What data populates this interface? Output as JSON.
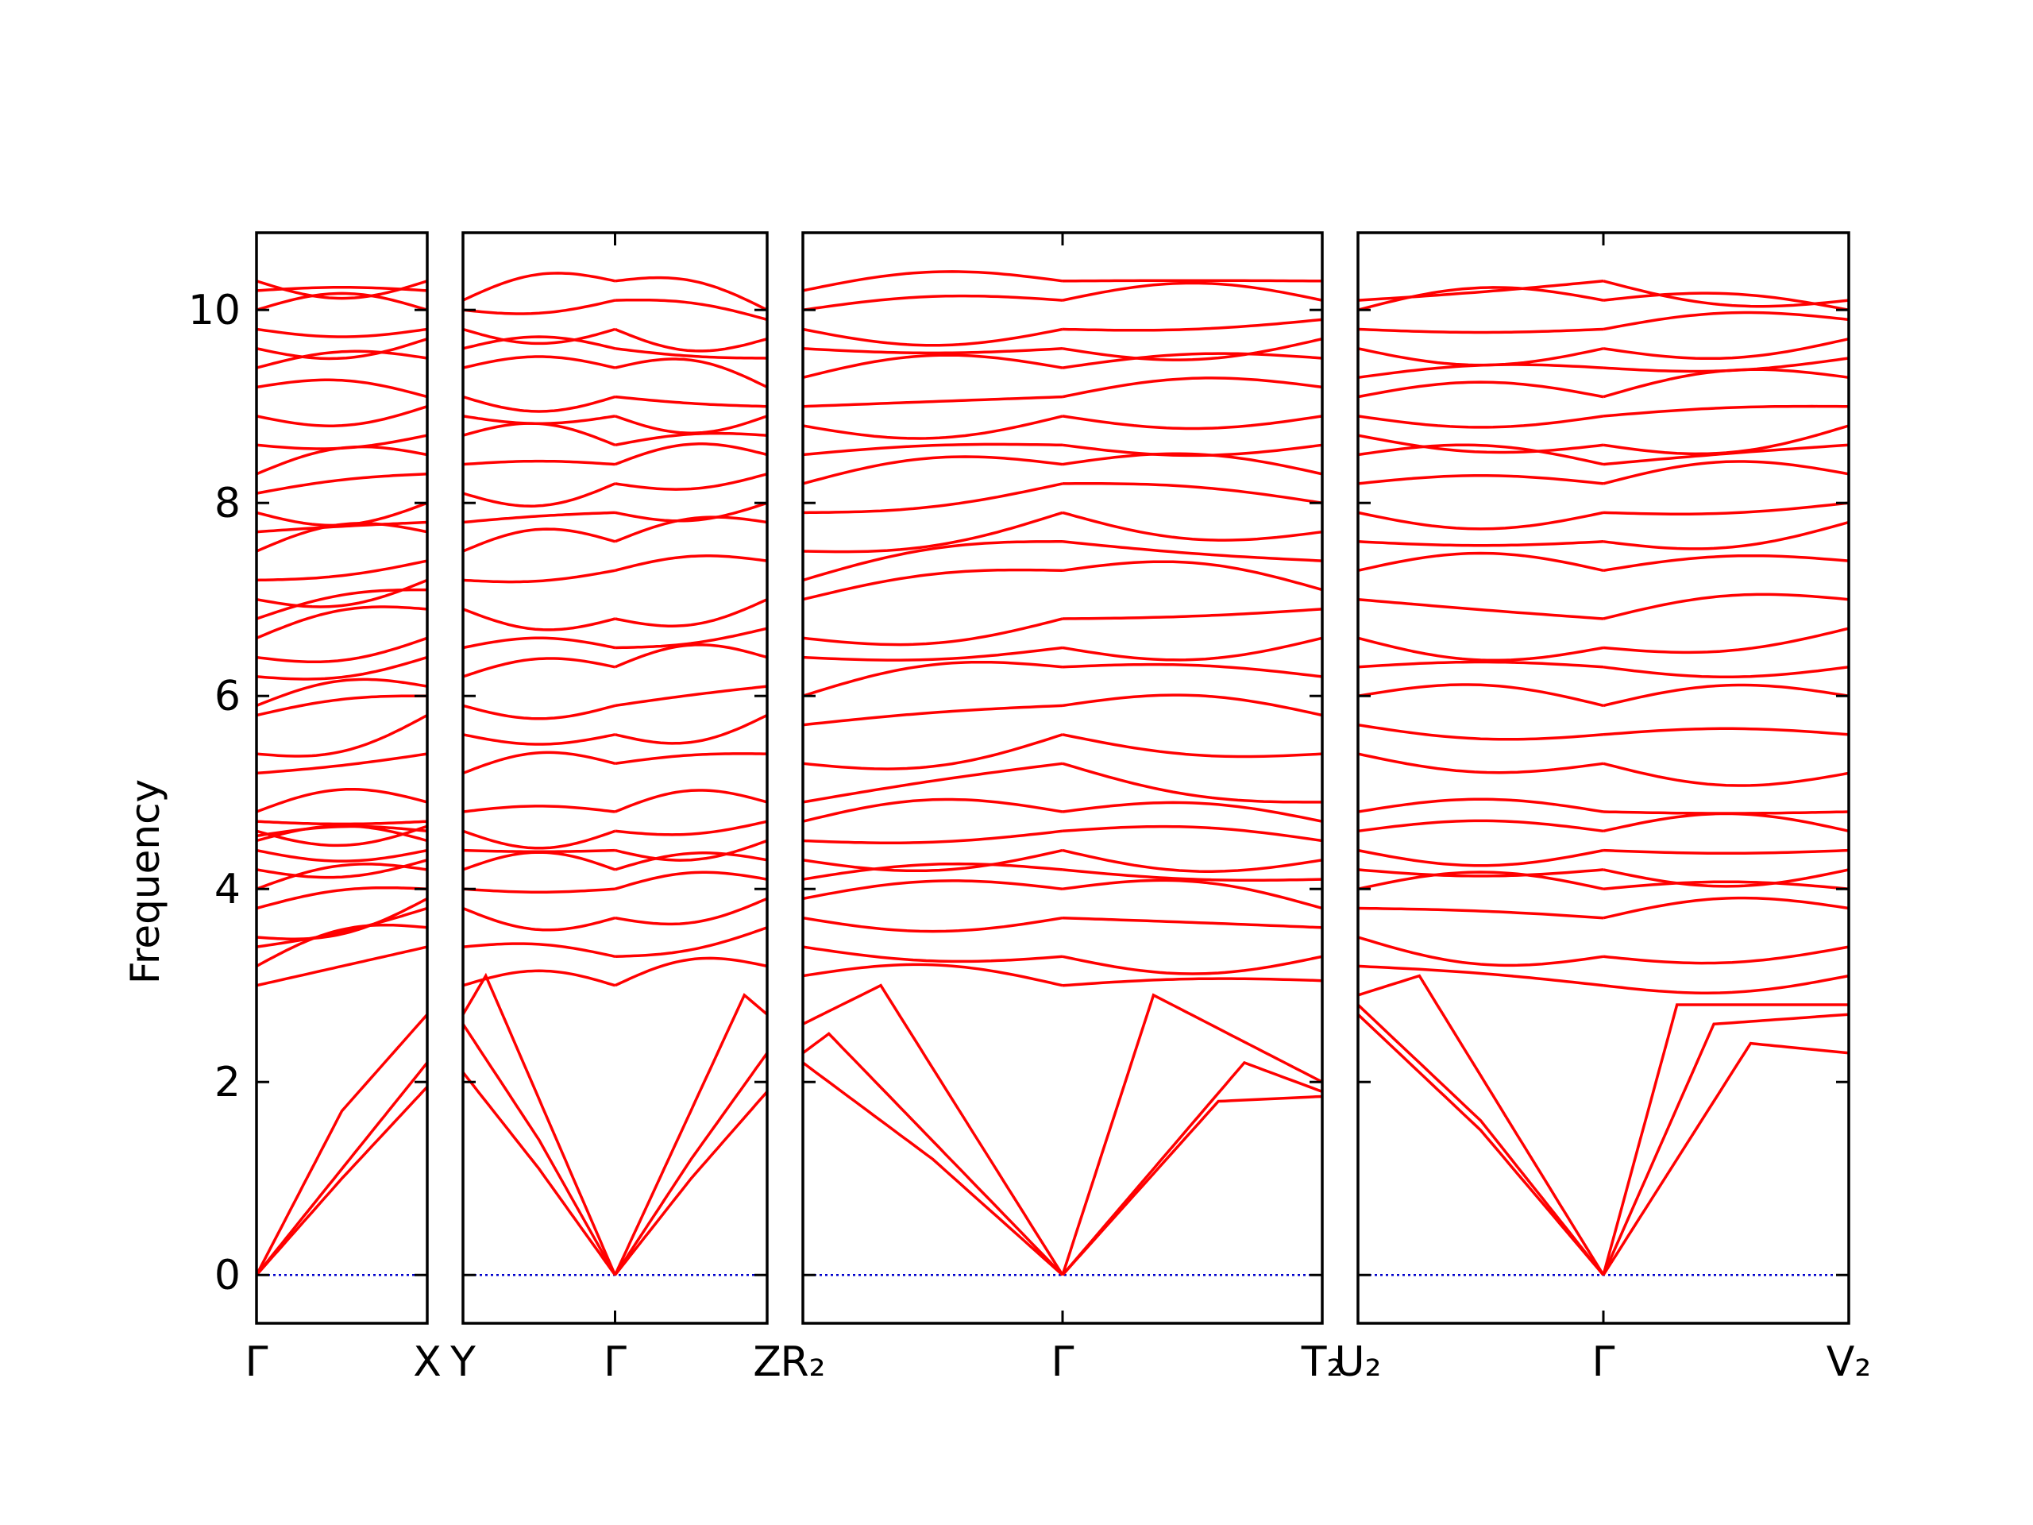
{
  "chart_data": {
    "type": "line",
    "ylabel": "Frequency",
    "xlabel": "",
    "title": "",
    "ylim": [
      -0.5,
      10.8
    ],
    "yticks": [
      0,
      2,
      4,
      6,
      8,
      10
    ],
    "grid": false,
    "legend": "none",
    "line_color": "#ff0000",
    "zero_line_color": "#0000cc",
    "panels": [
      {
        "path": [
          "Γ",
          "X"
        ],
        "segments": [
          {
            "acoustic": [
              {
                "k": [
                  0,
                  0.5,
                  1
                ],
                "f": [
                  0,
                  1.7,
                  2.7
                ]
              },
              {
                "k": [
                  0,
                  0.5,
                  1
                ],
                "f": [
                  0,
                  1.1,
                  2.2
                ]
              },
              {
                "k": [
                  0,
                  0.5,
                  1
                ],
                "f": [
                  0,
                  1.0,
                  1.95
                ]
              }
            ],
            "optical_start": [
              3.0,
              3.2,
              3.4,
              3.5,
              3.8,
              4.0,
              4.2,
              4.4,
              4.5,
              4.55,
              4.6,
              4.7,
              4.8,
              5.2,
              5.4,
              5.8,
              5.9,
              6.2,
              6.4,
              6.6,
              6.8,
              7.0,
              7.2,
              7.5,
              7.7,
              7.9,
              8.1,
              8.3,
              8.6,
              8.9,
              9.2,
              9.4,
              9.6,
              9.8,
              10.0,
              10.2,
              10.3
            ],
            "optical_end": [
              3.4,
              3.6,
              3.8,
              3.9,
              4.0,
              4.2,
              4.3,
              4.4,
              4.5,
              4.6,
              4.65,
              4.7,
              4.9,
              5.4,
              5.8,
              6.0,
              6.1,
              6.4,
              6.6,
              6.9,
              7.1,
              7.2,
              7.4,
              7.7,
              7.8,
              8.0,
              8.3,
              8.5,
              8.7,
              9.0,
              9.1,
              9.5,
              9.7,
              9.8,
              10.0,
              10.2,
              10.3
            ]
          }
        ]
      },
      {
        "path": [
          "Y",
          "Γ",
          "Z"
        ],
        "segments": [
          {
            "acoustic": [
              {
                "k": [
                  0,
                  0.15,
                  1
                ],
                "f": [
                  2.7,
                  3.1,
                  0
                ]
              },
              {
                "k": [
                  0,
                  0.5,
                  1
                ],
                "f": [
                  2.6,
                  1.4,
                  0
                ]
              },
              {
                "k": [
                  0,
                  0.5,
                  1
                ],
                "f": [
                  2.1,
                  1.1,
                  0
                ]
              }
            ],
            "optical_start": [
              3.0,
              3.4,
              3.8,
              4.0,
              4.2,
              4.4,
              4.6,
              4.8,
              5.2,
              5.6,
              5.9,
              6.2,
              6.5,
              6.9,
              7.2,
              7.5,
              7.8,
              8.1,
              8.4,
              8.7,
              8.9,
              9.1,
              9.4,
              9.6,
              9.8,
              10.0,
              10.1
            ],
            "optical_end": [
              3.0,
              3.3,
              3.7,
              4.0,
              4.2,
              4.4,
              4.6,
              4.8,
              5.3,
              5.6,
              5.9,
              6.3,
              6.5,
              6.8,
              7.3,
              7.6,
              7.9,
              8.2,
              8.4,
              8.6,
              8.9,
              9.1,
              9.4,
              9.6,
              9.8,
              10.1,
              10.3
            ]
          },
          {
            "acoustic": [
              {
                "k": [
                  0,
                  0.85,
                  1
                ],
                "f": [
                  0,
                  2.9,
                  2.7
                ]
              },
              {
                "k": [
                  0,
                  0.5,
                  1
                ],
                "f": [
                  0,
                  1.2,
                  2.3
                ]
              },
              {
                "k": [
                  0,
                  0.5,
                  1
                ],
                "f": [
                  0,
                  1.0,
                  1.9
                ]
              }
            ],
            "optical_start": [
              3.0,
              3.3,
              3.7,
              4.0,
              4.2,
              4.4,
              4.6,
              4.8,
              5.3,
              5.6,
              5.9,
              6.3,
              6.5,
              6.8,
              7.3,
              7.6,
              7.9,
              8.2,
              8.4,
              8.6,
              8.9,
              9.1,
              9.4,
              9.6,
              9.8,
              10.1,
              10.3
            ],
            "optical_end": [
              3.2,
              3.6,
              3.9,
              4.1,
              4.3,
              4.5,
              4.7,
              4.9,
              5.4,
              5.8,
              6.1,
              6.4,
              6.7,
              7.0,
              7.4,
              7.8,
              8.0,
              8.3,
              8.5,
              8.7,
              8.9,
              9.0,
              9.2,
              9.5,
              9.7,
              9.9,
              10.0
            ]
          }
        ]
      },
      {
        "path": [
          "R₂",
          "Γ",
          "T₂"
        ],
        "segments": [
          {
            "acoustic": [
              {
                "k": [
                  0,
                  0.3,
                  1
                ],
                "f": [
                  2.6,
                  3.0,
                  0
                ]
              },
              {
                "k": [
                  0,
                  0.1,
                  1
                ],
                "f": [
                  2.3,
                  2.5,
                  0
                ]
              },
              {
                "k": [
                  0,
                  0.5,
                  1
                ],
                "f": [
                  2.2,
                  1.2,
                  0
                ]
              }
            ],
            "optical_start": [
              3.1,
              3.4,
              3.7,
              3.9,
              4.1,
              4.3,
              4.5,
              4.7,
              4.9,
              5.3,
              5.7,
              6.0,
              6.4,
              6.6,
              7.0,
              7.2,
              7.5,
              7.9,
              8.2,
              8.5,
              8.8,
              9.0,
              9.3,
              9.6,
              9.8,
              10.0,
              10.2
            ],
            "optical_end": [
              3.0,
              3.3,
              3.7,
              4.0,
              4.2,
              4.4,
              4.6,
              4.8,
              5.3,
              5.6,
              5.9,
              6.3,
              6.5,
              6.8,
              7.3,
              7.6,
              7.9,
              8.2,
              8.4,
              8.6,
              8.9,
              9.1,
              9.4,
              9.6,
              9.8,
              10.1,
              10.3
            ]
          },
          {
            "acoustic": [
              {
                "k": [
                  0,
                  0.35,
                  1
                ],
                "f": [
                  0,
                  2.9,
                  2.0
                ]
              },
              {
                "k": [
                  0,
                  0.7,
                  1
                ],
                "f": [
                  0,
                  2.2,
                  1.9
                ]
              },
              {
                "k": [
                  0,
                  0.6,
                  1
                ],
                "f": [
                  0,
                  1.8,
                  1.85
                ]
              }
            ],
            "optical_start": [
              3.0,
              3.3,
              3.7,
              4.0,
              4.2,
              4.4,
              4.6,
              4.8,
              5.3,
              5.6,
              5.9,
              6.3,
              6.5,
              6.8,
              7.3,
              7.6,
              7.9,
              8.2,
              8.4,
              8.6,
              8.9,
              9.1,
              9.4,
              9.6,
              9.8,
              10.1,
              10.3
            ],
            "optical_end": [
              3.05,
              3.3,
              3.6,
              3.8,
              4.1,
              4.3,
              4.5,
              4.7,
              4.9,
              5.4,
              5.8,
              6.2,
              6.6,
              6.9,
              7.1,
              7.4,
              7.7,
              8.0,
              8.3,
              8.6,
              8.9,
              9.2,
              9.5,
              9.7,
              9.9,
              10.1,
              10.3
            ]
          }
        ]
      },
      {
        "path": [
          "U₂",
          "Γ",
          "V₂"
        ],
        "segments": [
          {
            "acoustic": [
              {
                "k": [
                  0,
                  0.25,
                  1
                ],
                "f": [
                  2.9,
                  3.1,
                  0
                ]
              },
              {
                "k": [
                  0,
                  0.5,
                  1
                ],
                "f": [
                  2.8,
                  1.6,
                  0
                ]
              },
              {
                "k": [
                  0,
                  0.5,
                  1
                ],
                "f": [
                  2.7,
                  1.5,
                  0
                ]
              }
            ],
            "optical_start": [
              3.2,
              3.5,
              3.8,
              4.0,
              4.2,
              4.4,
              4.6,
              4.8,
              5.4,
              5.7,
              6.0,
              6.3,
              6.6,
              7.0,
              7.3,
              7.6,
              7.9,
              8.2,
              8.5,
              8.7,
              8.9,
              9.1,
              9.3,
              9.6,
              9.8,
              10.0,
              10.1
            ],
            "optical_end": [
              3.0,
              3.3,
              3.7,
              4.0,
              4.2,
              4.4,
              4.6,
              4.8,
              5.3,
              5.6,
              5.9,
              6.3,
              6.5,
              6.8,
              7.3,
              7.6,
              7.9,
              8.2,
              8.4,
              8.6,
              8.9,
              9.1,
              9.4,
              9.6,
              9.8,
              10.1,
              10.3
            ]
          },
          {
            "acoustic": [
              {
                "k": [
                  0,
                  0.3,
                  1
                ],
                "f": [
                  0,
                  2.8,
                  2.8
                ]
              },
              {
                "k": [
                  0,
                  0.45,
                  1
                ],
                "f": [
                  0,
                  2.6,
                  2.7
                ]
              },
              {
                "k": [
                  0,
                  0.6,
                  1
                ],
                "f": [
                  0,
                  2.4,
                  2.3
                ]
              }
            ],
            "optical_start": [
              3.0,
              3.3,
              3.7,
              4.0,
              4.2,
              4.4,
              4.6,
              4.8,
              5.3,
              5.6,
              5.9,
              6.3,
              6.5,
              6.8,
              7.3,
              7.6,
              7.9,
              8.2,
              8.4,
              8.6,
              8.9,
              9.1,
              9.4,
              9.6,
              9.8,
              10.1,
              10.3
            ],
            "optical_end": [
              3.1,
              3.4,
              3.8,
              4.0,
              4.2,
              4.4,
              4.6,
              4.8,
              5.2,
              5.6,
              6.0,
              6.3,
              6.7,
              7.0,
              7.4,
              7.8,
              8.0,
              8.3,
              8.6,
              8.8,
              9.0,
              9.3,
              9.5,
              9.7,
              9.9,
              10.0,
              10.1
            ]
          }
        ]
      }
    ]
  }
}
